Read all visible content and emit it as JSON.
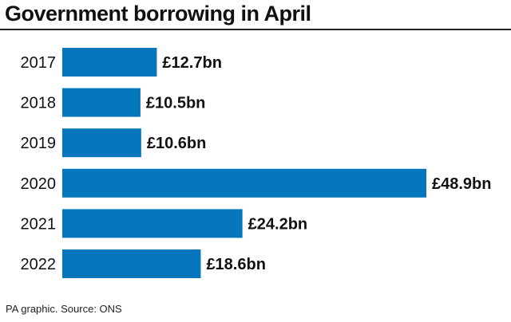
{
  "header": {
    "title": "Government borrowing in April"
  },
  "footer": {
    "source": "PA graphic. Source: ONS"
  },
  "colors": {
    "bar": "#0677BD"
  },
  "chart_data": {
    "type": "bar",
    "orientation": "horizontal",
    "title": "Government borrowing in April",
    "xlabel": "",
    "ylabel": "",
    "categories": [
      "2017",
      "2018",
      "2019",
      "2020",
      "2021",
      "2022"
    ],
    "values": [
      12.7,
      10.5,
      10.6,
      48.9,
      24.2,
      18.6
    ],
    "value_labels": [
      "£12.7bn",
      "£10.5bn",
      "£10.6bn",
      "£48.9bn",
      "£24.2bn",
      "£18.6bn"
    ],
    "grid": false,
    "legend": "none"
  }
}
